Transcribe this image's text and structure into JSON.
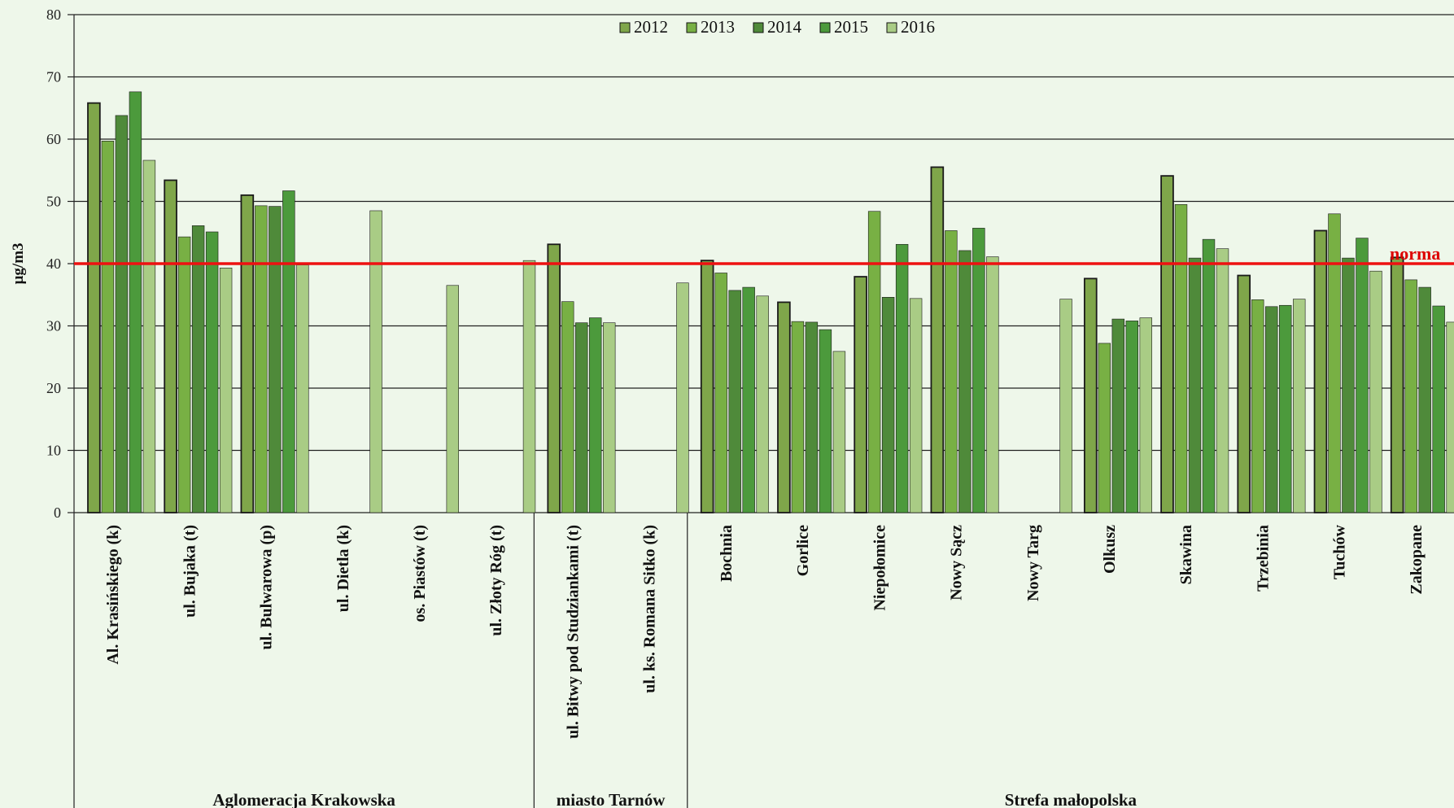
{
  "colors": {
    "plot_background": "#eef7ea",
    "gridline": "#222222",
    "norm_line": "#ee1111",
    "norm_label": "#dd0000",
    "bar_outline": "#1a1a1a",
    "series": [
      "#7fa64a",
      "#78b044",
      "#4f8a3a",
      "#4c9a3c",
      "#a9cc85"
    ]
  },
  "chart_data": {
    "type": "bar",
    "ylabel": "µg/m3",
    "ylim": [
      0,
      80
    ],
    "yticks": [
      0,
      10,
      20,
      30,
      40,
      50,
      60,
      70,
      80
    ],
    "grid": true,
    "legend_position": "top-center",
    "series_names": [
      "2012",
      "2013",
      "2014",
      "2015",
      "2016"
    ],
    "categories": [
      "Al. Krasińskiego (k)",
      "ul. Bujaka (t)",
      "ul. Bulwarowa (p)",
      "ul. Dietla (k)",
      "os. Piastów (t)",
      "ul. Złoty Róg (t)",
      "ul. Bitwy pod Studziankami (t)",
      "ul. ks. Romana Sitko (k)",
      "Bochnia",
      "Gorlice",
      "Niepołomice",
      "Nowy Sącz",
      "Nowy Targ",
      "Olkusz",
      "Skawina",
      "Trzebinia",
      "Tuchów",
      "Zakopane"
    ],
    "series": [
      {
        "name": "2012",
        "values": [
          65.8,
          53.4,
          51.0,
          null,
          null,
          null,
          43.1,
          null,
          40.5,
          33.8,
          37.9,
          55.5,
          null,
          37.6,
          54.1,
          38.1,
          45.3,
          41.0
        ]
      },
      {
        "name": "2013",
        "values": [
          59.7,
          44.3,
          49.3,
          null,
          null,
          null,
          33.9,
          null,
          38.5,
          30.7,
          48.4,
          45.3,
          null,
          27.2,
          49.5,
          34.2,
          48.0,
          37.4
        ]
      },
      {
        "name": "2014",
        "values": [
          63.8,
          46.1,
          49.2,
          null,
          null,
          null,
          30.5,
          null,
          35.7,
          30.6,
          34.6,
          42.1,
          null,
          31.1,
          40.9,
          33.1,
          40.9,
          36.2
        ]
      },
      {
        "name": "2015",
        "values": [
          67.6,
          45.1,
          51.7,
          null,
          null,
          null,
          31.3,
          null,
          36.2,
          29.4,
          43.1,
          45.7,
          null,
          30.8,
          43.9,
          33.3,
          44.1,
          33.2
        ]
      },
      {
        "name": "2016",
        "values": [
          56.6,
          39.3,
          39.8,
          48.5,
          36.5,
          40.5,
          30.5,
          36.9,
          34.8,
          25.9,
          34.4,
          41.1,
          34.3,
          31.3,
          42.4,
          34.3,
          38.8,
          30.6
        ]
      }
    ],
    "norm": {
      "value": 40,
      "label": "norma"
    },
    "groups": [
      {
        "label": "Aglomeracja Krakowska",
        "start": 0,
        "end": 5
      },
      {
        "label": "miasto Tarnów",
        "start": 6,
        "end": 7
      },
      {
        "label": "Strefa małopolska",
        "start": 8,
        "end": 17
      }
    ]
  }
}
